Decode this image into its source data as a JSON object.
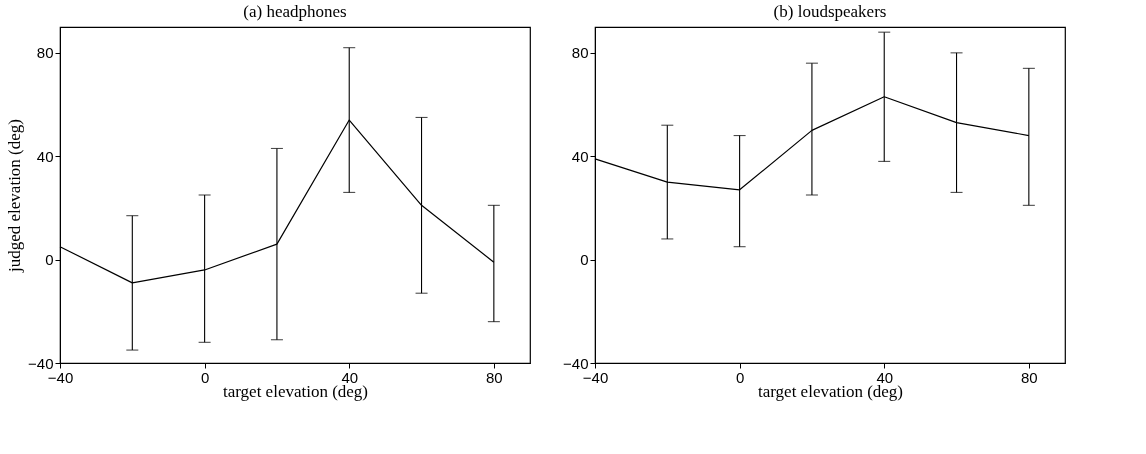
{
  "chart_data": [
    {
      "type": "line",
      "title": "(a) headphones",
      "xlabel": "target elevation (deg)",
      "ylabel": "judged elevation (deg)",
      "x": [
        -40,
        -20,
        0,
        20,
        40,
        60,
        80
      ],
      "xlim": [
        -40,
        90
      ],
      "ylim": [
        -40,
        90
      ],
      "xticks": [
        -40,
        0,
        40,
        80
      ],
      "yticks": [
        -40,
        0,
        40,
        80
      ],
      "grid": false,
      "marker": "none",
      "line_style": "solid",
      "series": [
        {
          "color": "#000000",
          "values": [
            5,
            -9,
            -4,
            6,
            54,
            21,
            -1
          ],
          "errors": [
            null,
            [
              -35,
              17
            ],
            [
              -32,
              25
            ],
            [
              -31,
              43
            ],
            [
              26,
              82
            ],
            [
              -13,
              55
            ],
            [
              -24,
              21
            ]
          ]
        }
      ]
    },
    {
      "type": "line",
      "title": "(b) loudspeakers",
      "xlabel": "target elevation (deg)",
      "x": [
        -40,
        -20,
        0,
        20,
        40,
        60,
        80
      ],
      "xlim": [
        -40,
        90
      ],
      "ylim": [
        -40,
        90
      ],
      "xticks": [
        -40,
        0,
        40,
        80
      ],
      "yticks": [
        -40,
        0,
        40,
        80
      ],
      "grid": false,
      "marker": "none",
      "line_style": "solid",
      "series": [
        {
          "color": "#000000",
          "values": [
            39,
            30,
            27,
            50,
            63,
            53,
            48
          ],
          "errors": [
            null,
            [
              8,
              52
            ],
            [
              5,
              48
            ],
            [
              25,
              76
            ],
            [
              38,
              88
            ],
            [
              26,
              80
            ],
            [
              21,
              74
            ]
          ]
        }
      ]
    }
  ]
}
